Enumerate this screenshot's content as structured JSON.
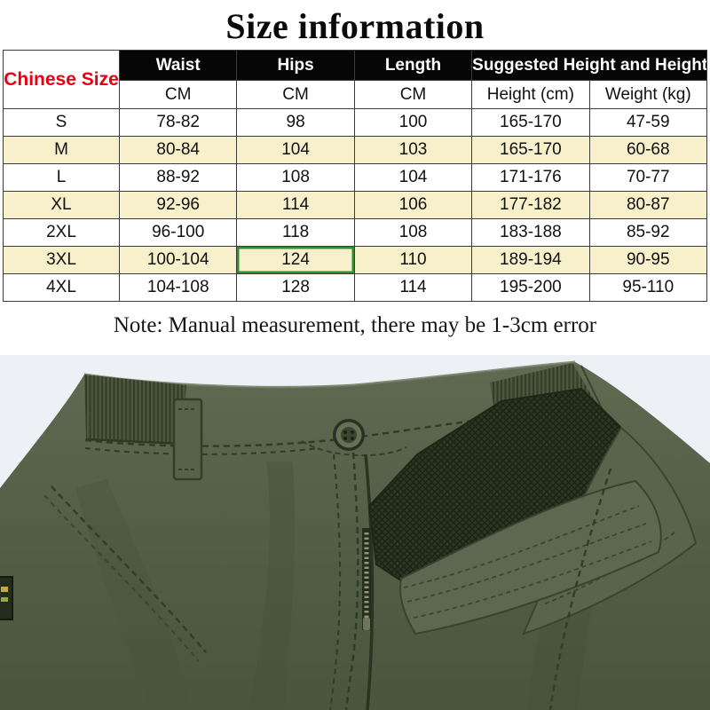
{
  "title": "Size information",
  "note": "Note: Manual measurement, there may be 1-3cm error",
  "table": {
    "corner_header": "Chinese Size",
    "group_headers": [
      "Waist",
      "Hips",
      "Length",
      "Suggested Height and Height"
    ],
    "unit_headers": [
      "CM",
      "CM",
      "CM",
      "Height  (cm)",
      "Weight  (kg)"
    ],
    "row_keys": [
      "size",
      "waist",
      "hips",
      "length",
      "height",
      "weight"
    ],
    "rows": [
      {
        "size": "S",
        "waist": "78-82",
        "hips": "98",
        "length": "100",
        "height": "165-170",
        "weight": "47-59"
      },
      {
        "size": "M",
        "waist": "80-84",
        "hips": "104",
        "length": "103",
        "height": "165-170",
        "weight": "60-68"
      },
      {
        "size": "L",
        "waist": "88-92",
        "hips": "108",
        "length": "104",
        "height": "171-176",
        "weight": "70-77"
      },
      {
        "size": "XL",
        "waist": "92-96",
        "hips": "114",
        "length": "106",
        "height": "177-182",
        "weight": "80-87"
      },
      {
        "size": "2XL",
        "waist": "96-100",
        "hips": "118",
        "length": "108",
        "height": "183-188",
        "weight": "85-92"
      },
      {
        "size": "3XL",
        "waist": "100-104",
        "hips": "124",
        "length": "110",
        "height": "189-194",
        "weight": "90-95"
      },
      {
        "size": "4XL",
        "waist": "104-108",
        "hips": "128",
        "length": "114",
        "height": "195-200",
        "weight": "95-110"
      }
    ],
    "highlight": {
      "row": "3XL",
      "column": "hips"
    }
  },
  "colors": {
    "header_bg": "#060606",
    "header_text": "#ffffff",
    "corner_text": "#e60012",
    "alt_row_bg": "#f8efcb",
    "highlight_border": "#2e8f2e",
    "table_border": "#3c3c3c",
    "photo_bg": "#edf1f6",
    "pants_olive": "#57624b",
    "pants_dark": "#3f4933",
    "mesh_dark": "#2a3422"
  }
}
